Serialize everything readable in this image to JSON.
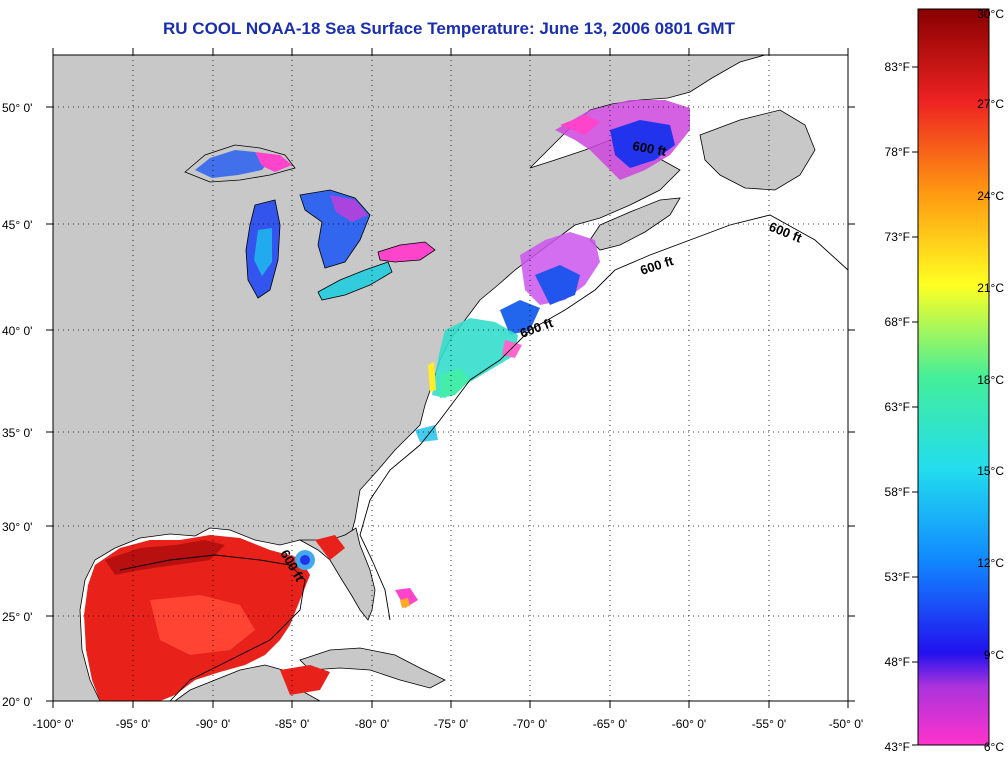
{
  "title": "RU COOL  NOAA-18  Sea Surface Temperature:  June 13, 2006 0801 GMT",
  "latitude_labels": [
    "20° 0'",
    "25° 0'",
    "30° 0'",
    "35° 0'",
    "40° 0'",
    "45° 0'",
    "50° 0'"
  ],
  "longitude_labels": [
    "-100° 0'",
    "-95° 0'",
    "-90° 0'",
    "-85° 0'",
    "-80° 0'",
    "-75° 0'",
    "-70° 0'",
    "-65° 0'",
    "-60° 0'",
    "-55° 0'",
    "-50° 0'"
  ],
  "isobath_label": "600 ft",
  "colorbar": {
    "celsius_labels": [
      "30°C",
      "27°C",
      "24°C",
      "21°C",
      "18°C",
      "15°C",
      "12°C",
      "9°C",
      "6°C"
    ],
    "fahrenheit_labels": [
      "83°F",
      "78°F",
      "73°F",
      "68°F",
      "63°F",
      "58°F",
      "53°F",
      "48°F",
      "43°F"
    ]
  },
  "colors": {
    "title": "#1a2fb0",
    "land": "#c8c8c8",
    "ocean_no_data": "#ffffff",
    "warm_gulf": "#e8221a",
    "cold": "#2233ee"
  }
}
